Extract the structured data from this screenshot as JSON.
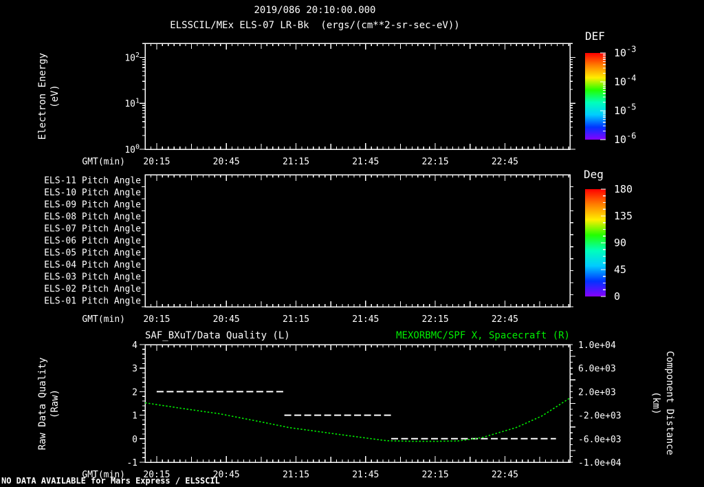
{
  "header": {
    "date_line": "2019/086 20:10:00.000",
    "instrument_line": "ELSSCIL/MEx ELS-07 LR-Bk  (ergs/(cm**2-sr-sec-eV))"
  },
  "footer": {
    "no_data_text": "NO DATA AVAILABLE for Mars Express / ELSSCIL"
  },
  "time_axis": {
    "label": "GMT(min)",
    "start": "20:10",
    "end": "23:13",
    "tick_labels": [
      "20:15",
      "20:45",
      "21:15",
      "21:45",
      "22:15",
      "22:45"
    ]
  },
  "colors": {
    "background": "#000000",
    "foreground": "#ffffff",
    "accent_green": "#00ee00",
    "rainbow": [
      "#ff0000",
      "#ff7f00",
      "#ffee00",
      "#22ff00",
      "#00ffbb",
      "#00ccff",
      "#0033ff",
      "#8800ff"
    ]
  },
  "panels": {
    "spectrogram": {
      "ylabel_line1": "Electron Energy",
      "ylabel_line2": "(eV)",
      "yticks": [
        {
          "base": "10",
          "exp": "2"
        },
        {
          "base": "10",
          "exp": "1"
        },
        {
          "base": "10",
          "exp": "0"
        }
      ],
      "colorbar": {
        "title": "DEF",
        "ticks": [
          {
            "base": "10",
            "exp": "-3"
          },
          {
            "base": "10",
            "exp": "-4"
          },
          {
            "base": "10",
            "exp": "-5"
          },
          {
            "base": "10",
            "exp": "-6"
          }
        ]
      }
    },
    "pitch": {
      "row_labels": [
        "ELS-11 Pitch Angle",
        "ELS-10 Pitch Angle",
        "ELS-09 Pitch Angle",
        "ELS-08 Pitch Angle",
        "ELS-07 Pitch Angle",
        "ELS-06 Pitch Angle",
        "ELS-05 Pitch Angle",
        "ELS-04 Pitch Angle",
        "ELS-03 Pitch Angle",
        "ELS-02 Pitch Angle",
        "ELS-01 Pitch Angle"
      ],
      "colorbar": {
        "title": "Deg",
        "ticks": [
          "180",
          "135",
          "90",
          "45",
          "0"
        ]
      }
    },
    "timeseries": {
      "title_left": "SAF_BXuT/Data Quality (L)",
      "title_right": "MEXORBMC/SPF X, Spacecraft (R)",
      "ylabel_left_line1": "Raw Data Quality",
      "ylabel_left_line2": "(Raw)",
      "ylabel_right_line1": "Component Distance",
      "ylabel_right_line2": "(km)",
      "left_ticks": [
        "4",
        "3",
        "2",
        "1",
        "0",
        "-1"
      ],
      "right_ticks": [
        "1.0e+04",
        "6.0e+03",
        "2.0e+03",
        "-2.0e+03",
        "-6.0e+03",
        "-1.0e+04"
      ]
    }
  },
  "chart_data": [
    {
      "type": "heatmap",
      "panel": "electron-energy-spectrogram",
      "title": "ELSSCIL/MEx ELS-07 LR-Bk (ergs/(cm**2-sr-sec-eV))",
      "xlabel": "GMT(min)",
      "ylabel": "Electron Energy (eV)",
      "y_scale": "log",
      "ylim": [
        1,
        200
      ],
      "x_range": [
        "20:10",
        "23:13"
      ],
      "xticks": [
        "20:15",
        "20:45",
        "21:15",
        "21:45",
        "22:15",
        "22:45"
      ],
      "colorbar": {
        "label": "DEF",
        "scale": "log",
        "ticks": [
          0.001,
          0.0001,
          1e-05,
          1e-06
        ],
        "units": "ergs/(cm**2-sr-sec-eV)"
      },
      "values": [],
      "note": "panel empty - no data available"
    },
    {
      "type": "heatmap",
      "panel": "pitch-angle-stack",
      "xlabel": "GMT(min)",
      "rows": [
        "ELS-11 Pitch Angle",
        "ELS-10 Pitch Angle",
        "ELS-09 Pitch Angle",
        "ELS-08 Pitch Angle",
        "ELS-07 Pitch Angle",
        "ELS-06 Pitch Angle",
        "ELS-05 Pitch Angle",
        "ELS-04 Pitch Angle",
        "ELS-03 Pitch Angle",
        "ELS-02 Pitch Angle",
        "ELS-01 Pitch Angle"
      ],
      "x_range": [
        "20:10",
        "23:13"
      ],
      "xticks": [
        "20:15",
        "20:45",
        "21:15",
        "21:45",
        "22:15",
        "22:45"
      ],
      "colorbar": {
        "label": "Deg",
        "ticks": [
          180,
          135,
          90,
          45,
          0
        ]
      },
      "values": [],
      "note": "panel empty - no data available"
    },
    {
      "type": "line",
      "panel": "quality-and-distance",
      "titles": {
        "left": "SAF_BXuT/Data Quality (L)",
        "right": "MEXORBMC/SPF X, Spacecraft (R)"
      },
      "xlabel": "GMT(min)",
      "x_range": [
        "20:10",
        "23:13"
      ],
      "xticks": [
        "20:15",
        "20:45",
        "21:15",
        "21:45",
        "22:15",
        "22:45"
      ],
      "left_axis": {
        "label": "Raw Data Quality (Raw)",
        "lim": [
          -1,
          4
        ],
        "ticks": [
          4,
          3,
          2,
          1,
          0,
          -1
        ]
      },
      "right_axis": {
        "label": "Component Distance (km)",
        "lim": [
          -10000,
          10000
        ],
        "ticks": [
          10000,
          6000,
          2000,
          -2000,
          -6000,
          -10000
        ]
      },
      "series": [
        {
          "name": "SAF_BXuT Data Quality",
          "axis": "left",
          "color": "#ffffff",
          "line_style": "dashed",
          "segments": [
            {
              "y": 2,
              "t0": "20:15",
              "t1": "21:10"
            },
            {
              "y": 1,
              "t0": "21:10",
              "t1": "21:56"
            },
            {
              "y": 0,
              "t0": "21:56",
              "t1": "23:07"
            }
          ]
        },
        {
          "name": "MEXORBMC/SPF X Spacecraft",
          "axis": "right",
          "color": "#00ee00",
          "line_style": "dotted",
          "points": [
            [
              "20:10",
              100
            ],
            [
              "20:25",
              -800
            ],
            [
              "20:42",
              -1750
            ],
            [
              "21:00",
              -3150
            ],
            [
              "21:12",
              -4100
            ],
            [
              "21:24",
              -4750
            ],
            [
              "21:36",
              -5400
            ],
            [
              "21:54",
              -6340
            ],
            [
              "22:05",
              -6440
            ],
            [
              "22:15",
              -6440
            ],
            [
              "22:25",
              -6380
            ],
            [
              "22:35",
              -5830
            ],
            [
              "22:50",
              -4080
            ],
            [
              "23:01",
              -2120
            ],
            [
              "23:13",
              920
            ]
          ]
        }
      ]
    }
  ]
}
